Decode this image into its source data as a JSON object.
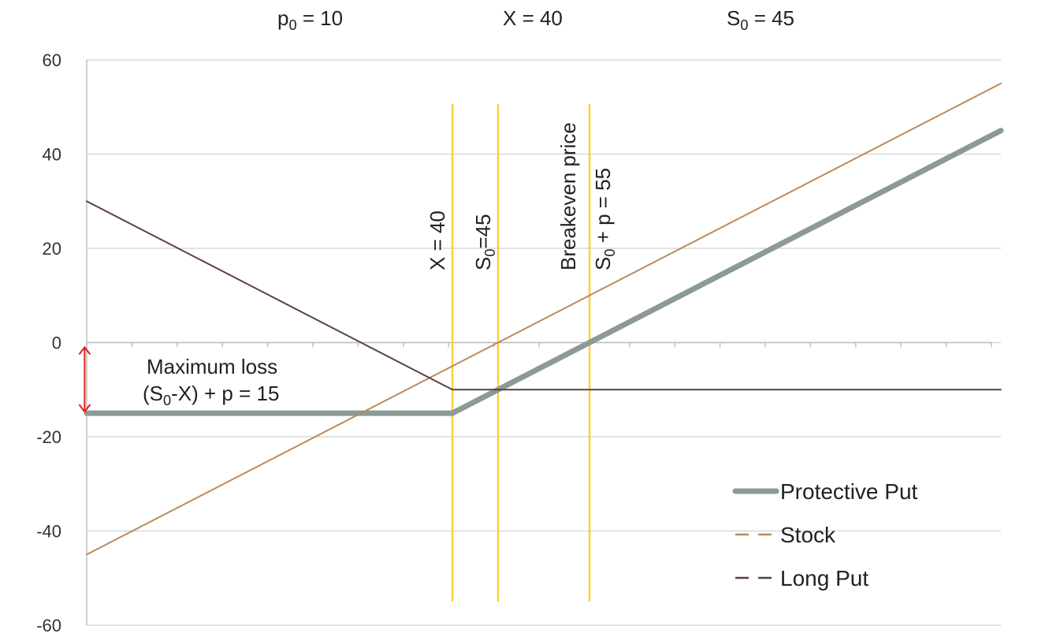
{
  "header": {
    "items": [
      {
        "main": "p",
        "sub": "0",
        "rest": " = 10"
      },
      {
        "main": "X = 40",
        "sub": "",
        "rest": ""
      },
      {
        "main": "S",
        "sub": "0",
        "rest": " = 45"
      }
    ]
  },
  "chart_data": {
    "type": "line",
    "x": [
      0,
      5,
      10,
      15,
      20,
      25,
      30,
      35,
      40,
      45,
      50,
      55,
      60,
      65,
      70,
      75,
      80,
      85,
      90,
      95,
      100
    ],
    "ylim": [
      -60,
      60
    ],
    "xlim": [
      0,
      100
    ],
    "yticks": [
      "60",
      "40",
      "20",
      "0",
      "-20",
      "-40",
      "-60"
    ],
    "grid": true,
    "legend_position": "bottom-right",
    "series": [
      {
        "name": "Protective Put",
        "color": "#8c9a95",
        "style": "thick-solid",
        "values": [
          -15,
          -15,
          -15,
          -15,
          -15,
          -15,
          -15,
          -15,
          -15,
          -10,
          -5,
          0,
          5,
          10,
          15,
          20,
          25,
          30,
          35,
          40,
          45
        ]
      },
      {
        "name": "Stock",
        "color": "#b98a5a",
        "style": "thin",
        "values": [
          -45,
          -40,
          -35,
          -30,
          -25,
          -20,
          -15,
          -10,
          -5,
          0,
          5,
          10,
          15,
          20,
          25,
          30,
          35,
          40,
          45,
          50,
          55
        ]
      },
      {
        "name": "Long Put",
        "color": "#5b3f48",
        "style": "thin",
        "values": [
          30,
          25,
          20,
          15,
          10,
          5,
          0,
          -5,
          -10,
          -10,
          -10,
          -10,
          -10,
          -10,
          -10,
          -10,
          -10,
          -10,
          -10,
          -10,
          -10
        ]
      }
    ],
    "vertical_lines": [
      {
        "x": 40,
        "color": "#f5d33a",
        "label_parts": [
          {
            "t": "X = 40",
            "sub": false
          }
        ]
      },
      {
        "x": 45,
        "color": "#f5d33a",
        "label_parts": [
          {
            "t": "S",
            "sub": false
          },
          {
            "t": "0",
            "sub": true
          },
          {
            "t": "=45",
            "sub": false
          }
        ]
      },
      {
        "x": 55,
        "color": "#f5d33a",
        "label_parts": [
          {
            "t": "Breakeven price",
            "sub": false
          }
        ],
        "label2_parts": [
          {
            "t": "S",
            "sub": false
          },
          {
            "t": "0",
            "sub": true
          },
          {
            "t": " + p = 55",
            "sub": false
          }
        ]
      }
    ],
    "annotation": {
      "line1": "Maximum loss",
      "line2_parts": [
        {
          "t": "(S",
          "sub": false
        },
        {
          "t": "0",
          "sub": true
        },
        {
          "t": "-X) + p = 15",
          "sub": false
        }
      ],
      "arrow_from": 0,
      "arrow_to": -15,
      "arrow_x": 4,
      "arrow_color": "#e02020"
    }
  }
}
